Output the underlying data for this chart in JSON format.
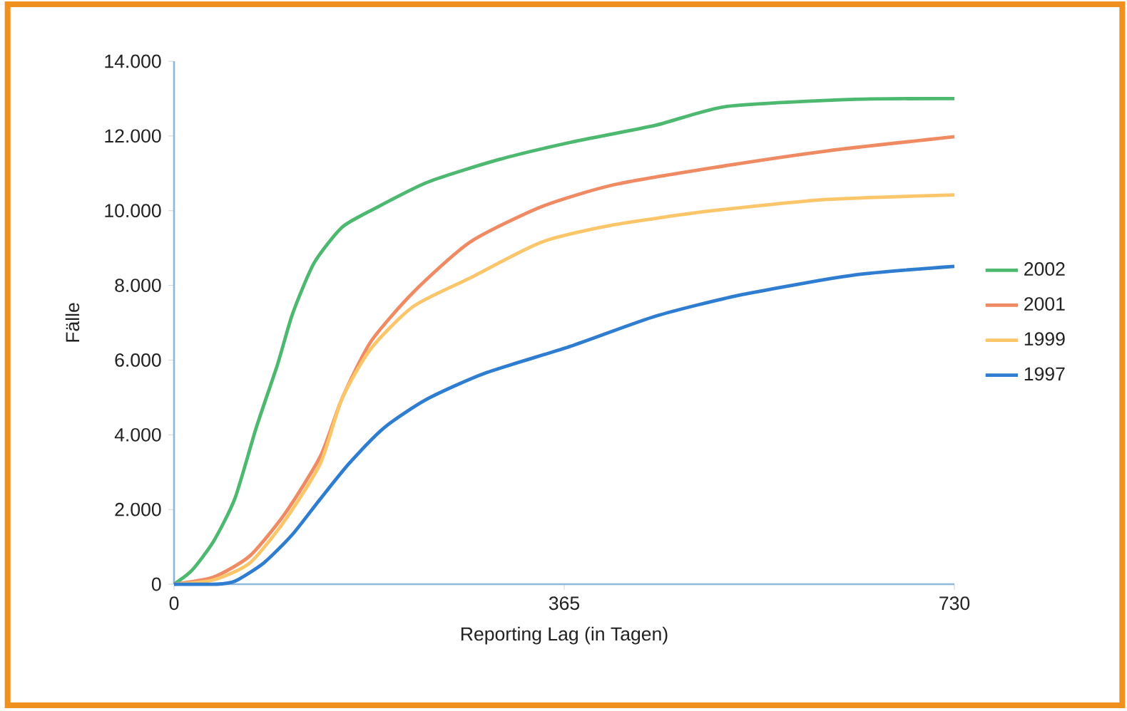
{
  "chart_data": {
    "type": "line",
    "xlabel": "Reporting Lag (in Tagen)",
    "ylabel": "Fälle",
    "xlim": [
      0,
      730
    ],
    "xticks": [
      0,
      365,
      730
    ],
    "ylim": [
      0,
      14000
    ],
    "yticks": [
      {
        "value": 0,
        "label": "0"
      },
      {
        "value": 2000,
        "label": "2.000"
      },
      {
        "value": 4000,
        "label": "4.000"
      },
      {
        "value": 6000,
        "label": "6.000"
      },
      {
        "value": 8000,
        "label": "8.000"
      },
      {
        "value": 10000,
        "label": "10.000"
      },
      {
        "value": 12000,
        "label": "12.000"
      },
      {
        "value": 14000,
        "label": "14.000"
      }
    ],
    "grid": false,
    "legend": "right",
    "marker": "none",
    "line_style": "solid",
    "series": [
      {
        "name": "2002",
        "color": "#4cb870",
        "x": [
          0,
          17,
          37,
          57,
          77,
          97,
          111,
          131,
          157,
          184,
          237,
          304,
          371,
          451,
          517,
          637,
          730
        ],
        "values": [
          0,
          380,
          1150,
          2300,
          4200,
          5900,
          7250,
          8600,
          9550,
          10000,
          10760,
          11370,
          11830,
          12290,
          12790,
          12980,
          13000
        ]
      },
      {
        "name": "2001",
        "color": "#ef8a62",
        "x": [
          0,
          37,
          71,
          104,
          137,
          157,
          184,
          224,
          277,
          344,
          411,
          504,
          611,
          730
        ],
        "values": [
          0,
          190,
          760,
          1900,
          3430,
          4960,
          6490,
          7820,
          9160,
          10110,
          10690,
          11150,
          11600,
          11980
        ]
      },
      {
        "name": "1999",
        "color": "#fbc66a",
        "x": [
          0,
          37,
          71,
          104,
          137,
          157,
          184,
          224,
          277,
          344,
          411,
          504,
          611,
          730
        ],
        "values": [
          0,
          115,
          570,
          1720,
          3240,
          4960,
          6300,
          7440,
          8200,
          9160,
          9620,
          10000,
          10300,
          10420
        ]
      },
      {
        "name": "1997",
        "color": "#2e7dd1",
        "x": [
          0,
          40,
          57,
          84,
          111,
          137,
          164,
          197,
          237,
          291,
          371,
          451,
          531,
          637,
          730
        ],
        "values": [
          0,
          0,
          80,
          570,
          1340,
          2290,
          3240,
          4200,
          4960,
          5650,
          6370,
          7180,
          7750,
          8280,
          8510
        ]
      }
    ]
  }
}
